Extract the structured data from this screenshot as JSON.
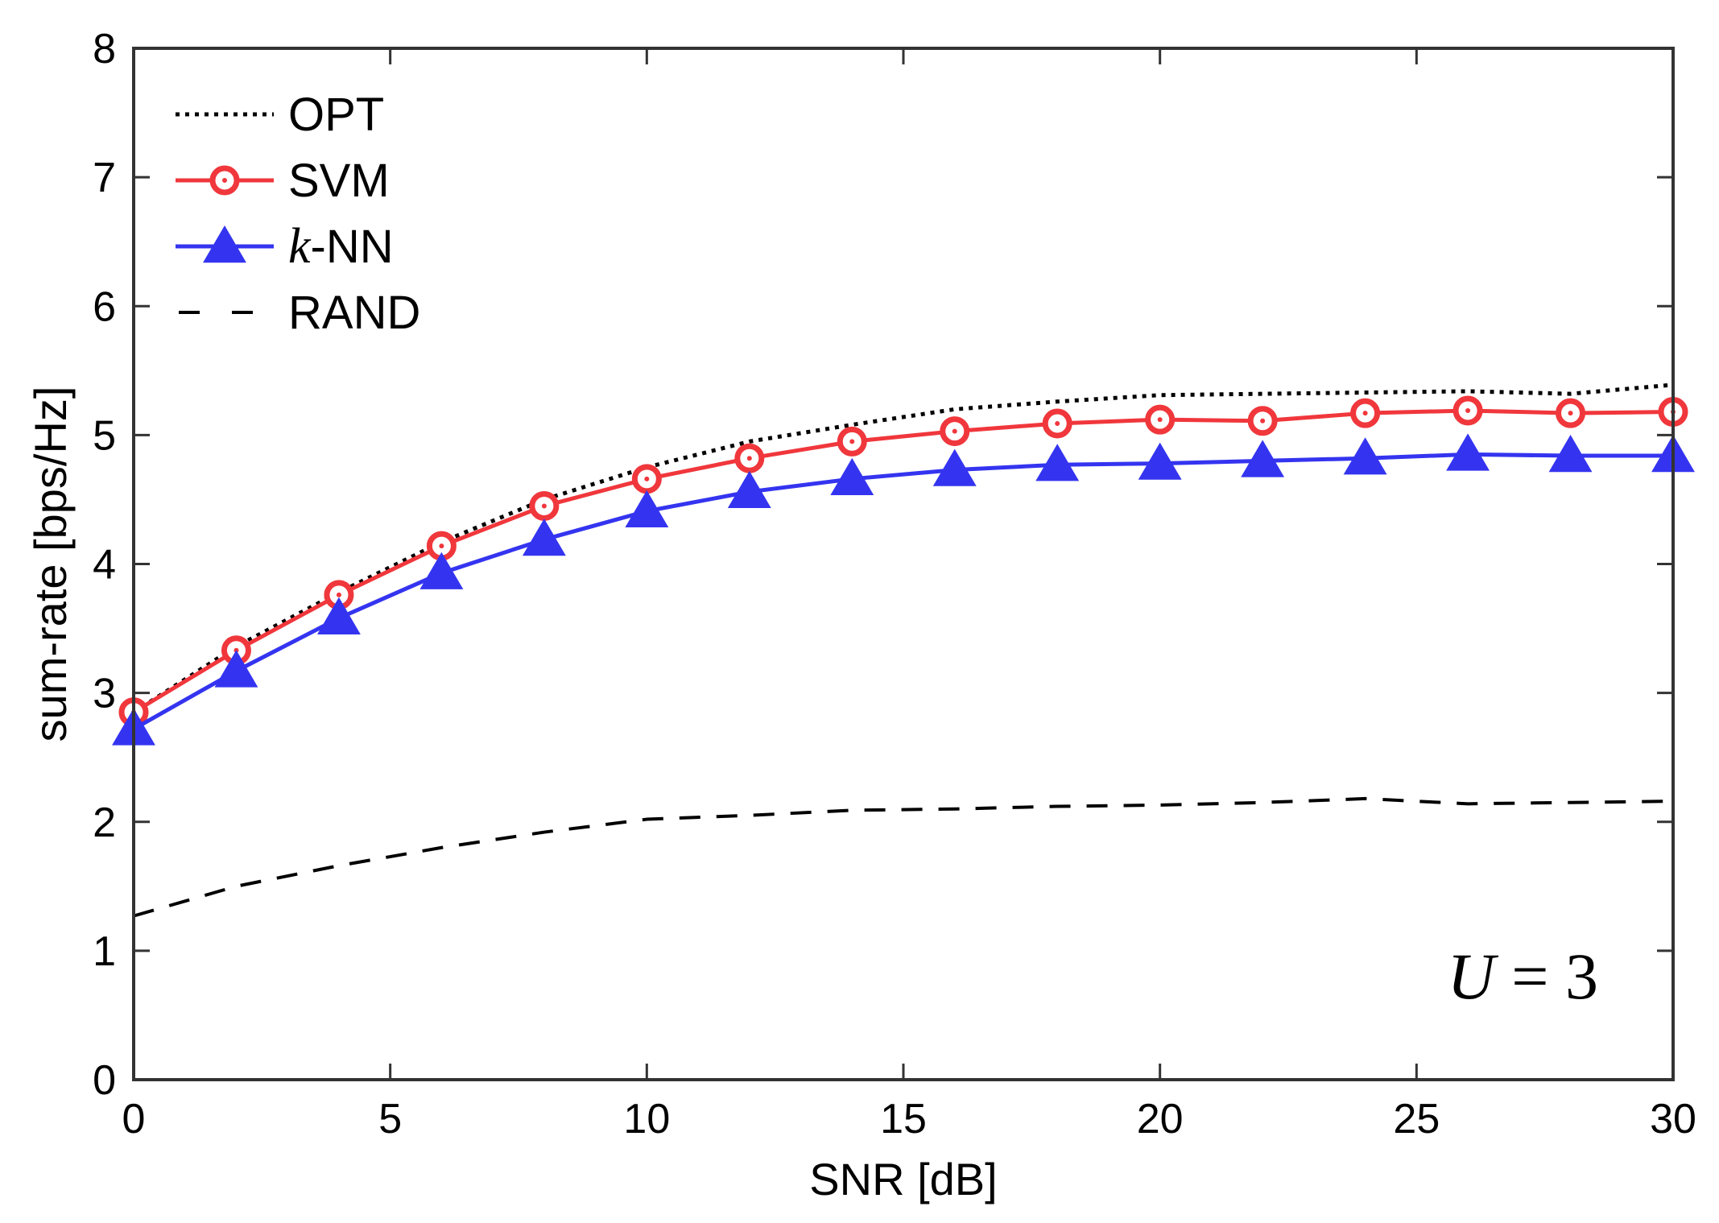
{
  "chart_data": {
    "type": "line",
    "title": "",
    "xlabel": "SNR [dB]",
    "ylabel": "sum-rate [bps/Hz]",
    "xlim": [
      0,
      30
    ],
    "ylim": [
      0,
      8
    ],
    "xticks": [
      0,
      5,
      10,
      15,
      20,
      25,
      30
    ],
    "yticks": [
      0,
      1,
      2,
      3,
      4,
      5,
      6,
      7,
      8
    ],
    "grid": false,
    "legend_position": "top-left",
    "annotation": {
      "var": "U",
      "eq": " = ",
      "val": "3"
    },
    "series": [
      {
        "name": "OPT",
        "label": "OPT",
        "style": "dotted",
        "marker": "none",
        "color": "#000000",
        "x": [
          0,
          2,
          4,
          6,
          8,
          10,
          12,
          14,
          16,
          18,
          20,
          22,
          24,
          26,
          28,
          30
        ],
        "values": [
          2.85,
          3.36,
          3.78,
          4.17,
          4.5,
          4.75,
          4.95,
          5.08,
          5.2,
          5.26,
          5.31,
          5.32,
          5.33,
          5.34,
          5.32,
          5.39
        ]
      },
      {
        "name": "SVM",
        "label": "SVM",
        "style": "solid",
        "marker": "circle",
        "color": "#f0373c",
        "x": [
          0,
          2,
          4,
          6,
          8,
          10,
          12,
          14,
          16,
          18,
          20,
          22,
          24,
          26,
          28,
          30
        ],
        "values": [
          2.85,
          3.33,
          3.76,
          4.14,
          4.45,
          4.66,
          4.82,
          4.95,
          5.03,
          5.09,
          5.12,
          5.11,
          5.17,
          5.19,
          5.17,
          5.18
        ]
      },
      {
        "name": "k-NN",
        "label_italic": "k",
        "label_rest": "-NN",
        "style": "solid",
        "marker": "triangle",
        "color": "#3434f0",
        "x": [
          0,
          2,
          4,
          6,
          8,
          10,
          12,
          14,
          16,
          18,
          20,
          22,
          24,
          26,
          28,
          30
        ],
        "values": [
          2.72,
          3.17,
          3.58,
          3.93,
          4.19,
          4.41,
          4.56,
          4.66,
          4.73,
          4.77,
          4.78,
          4.8,
          4.82,
          4.85,
          4.84,
          4.84
        ]
      },
      {
        "name": "RAND",
        "label": "RAND",
        "style": "dashed",
        "marker": "none",
        "color": "#000000",
        "x": [
          0,
          2,
          4,
          6,
          8,
          10,
          12,
          14,
          16,
          18,
          20,
          22,
          24,
          26,
          28,
          30
        ],
        "values": [
          1.27,
          1.5,
          1.66,
          1.8,
          1.92,
          2.02,
          2.05,
          2.09,
          2.1,
          2.12,
          2.13,
          2.15,
          2.18,
          2.14,
          2.15,
          2.16
        ]
      }
    ]
  }
}
